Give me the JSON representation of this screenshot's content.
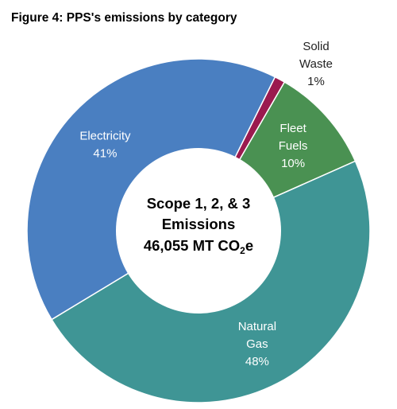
{
  "figure": {
    "title": "Figure 4: PPS's emissions by category"
  },
  "chart_data": {
    "type": "pie",
    "donut": true,
    "title": "Figure 4: PPS's emissions by category",
    "center_text": {
      "line1": "Scope 1, 2, & 3",
      "line2": "Emissions",
      "line3_value": "46,055 MT CO",
      "line3_sub": "2",
      "line3_suffix": "e"
    },
    "slices": [
      {
        "name": "Solid Waste",
        "name_lines": [
          "Solid",
          "Waste"
        ],
        "value": 1,
        "value_label": "1%",
        "color": "#9b1a4f"
      },
      {
        "name": "Fleet Fuels",
        "name_lines": [
          "Fleet",
          "Fuels"
        ],
        "value": 10,
        "value_label": "10%",
        "color": "#4a9152"
      },
      {
        "name": "Natural Gas",
        "name_lines": [
          "Natural",
          "Gas"
        ],
        "value": 48,
        "value_label": "48%",
        "color": "#3f9595"
      },
      {
        "name": "Electricity",
        "name_lines": [
          "Electricity"
        ],
        "value": 41,
        "value_label": "41%",
        "color": "#4a7fc1"
      }
    ],
    "label_colors": {
      "inside": "#ffffff",
      "outside": "#222222"
    }
  }
}
